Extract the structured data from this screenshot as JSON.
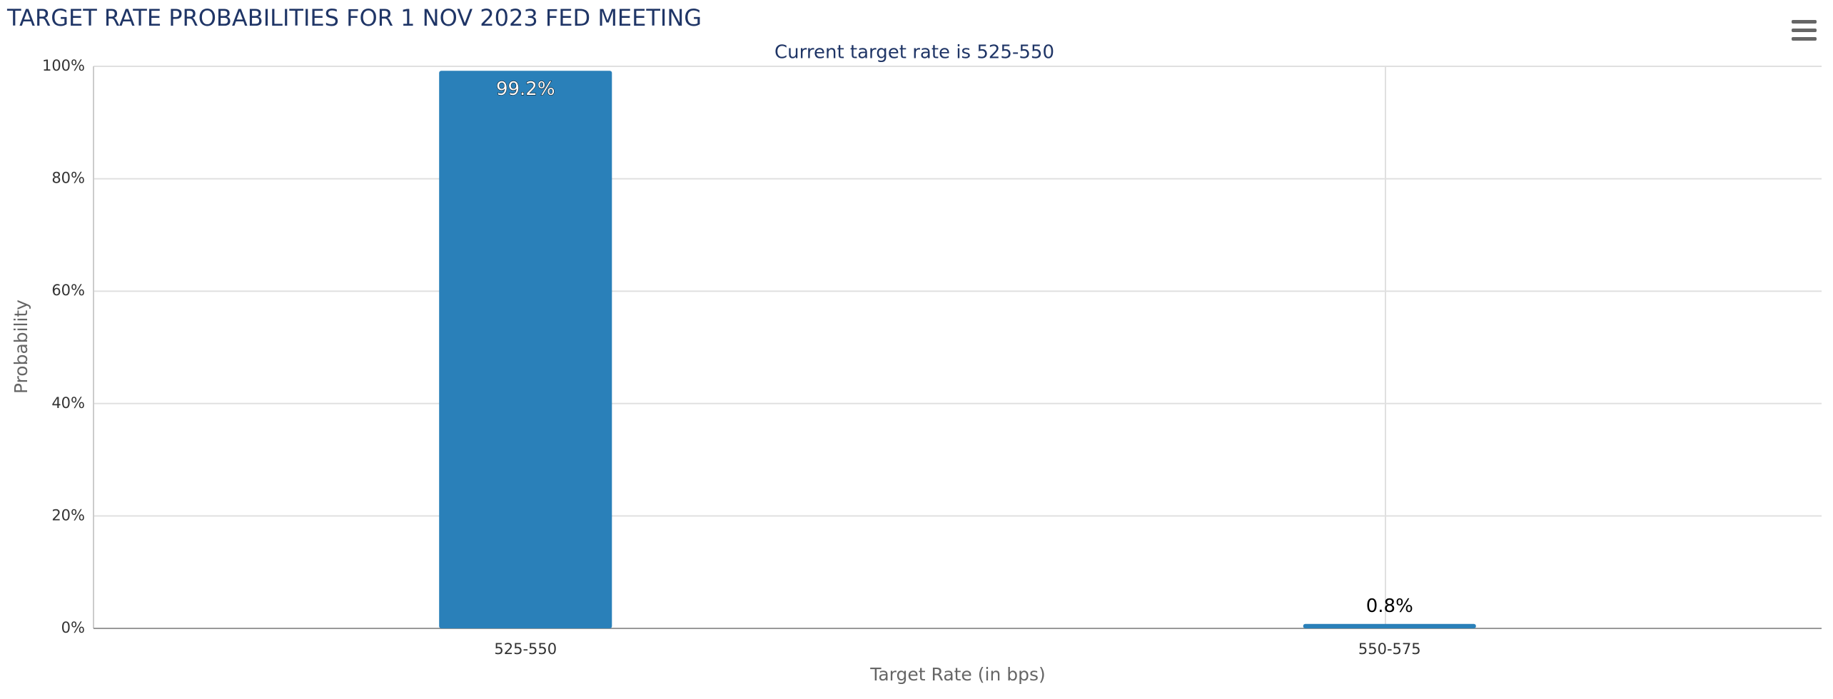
{
  "chart_data": {
    "type": "bar",
    "title": "TARGET RATE PROBABILITIES FOR 1 NOV 2023 FED MEETING",
    "subtitle": "Current target rate is 525-550",
    "x_label": "Target Rate (in bps)",
    "y_label": "Probability",
    "categories": [
      "525-550",
      "550-575"
    ],
    "values": [
      99.2,
      0.8
    ],
    "value_labels": [
      "99.2%",
      "0.8%"
    ],
    "color": "#2a80b9",
    "ylim": [
      0,
      100
    ],
    "yticks": [
      {
        "value": 0,
        "label": "0%"
      },
      {
        "value": 20,
        "label": "20%"
      },
      {
        "value": 40,
        "label": "40%"
      },
      {
        "value": 60,
        "label": "60%"
      },
      {
        "value": 80,
        "label": "80%"
      },
      {
        "value": 100,
        "label": "100%"
      }
    ],
    "grid": true
  }
}
